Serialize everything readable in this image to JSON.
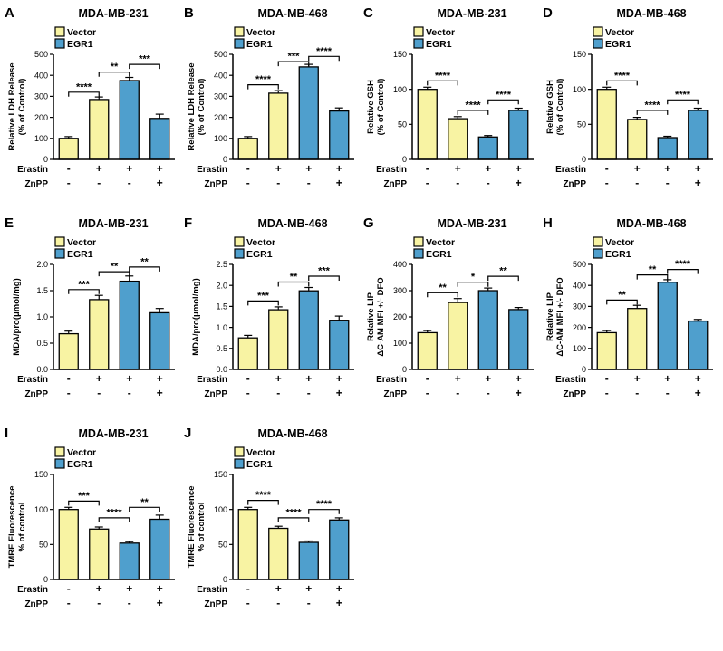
{
  "figure": {
    "legend": [
      {
        "label": "Vector",
        "color_key": "vector"
      },
      {
        "label": "EGR1",
        "color_key": "egr1"
      }
    ],
    "colors": {
      "vector": "#F8F3A3",
      "egr1": "#4F9FCD",
      "outline": "#000000"
    },
    "x_rows": [
      {
        "label": "Erastin",
        "signs": [
          "-",
          "+",
          "+",
          "+"
        ]
      },
      {
        "label": "ZnPP",
        "signs": [
          "-",
          "-",
          "-",
          "+"
        ]
      }
    ]
  },
  "chart_data": [
    {
      "type": "bar",
      "panel": "A",
      "title": "MDA-MB-231",
      "ylabel_lines": [
        "Relative LDH Release",
        "(% of Control)"
      ],
      "ylim": [
        0,
        500
      ],
      "yticks": [
        0,
        100,
        200,
        300,
        400,
        500
      ],
      "ytick_decimals": 0,
      "bar_colors": [
        "vector",
        "vector",
        "egr1",
        "egr1"
      ],
      "values": [
        100,
        285,
        375,
        195
      ],
      "errors": [
        8,
        12,
        15,
        20
      ],
      "significance": [
        {
          "from": 0,
          "to": 1,
          "label": "****",
          "y": 320
        },
        {
          "from": 1,
          "to": 2,
          "label": "**",
          "y": 415
        },
        {
          "from": 2,
          "to": 3,
          "label": "***",
          "y": 452
        }
      ]
    },
    {
      "type": "bar",
      "panel": "B",
      "title": "MDA-MB-468",
      "ylabel_lines": [
        "Relative LDH Release",
        "(% of Control)"
      ],
      "ylim": [
        0,
        500
      ],
      "yticks": [
        0,
        100,
        200,
        300,
        400,
        500
      ],
      "ytick_decimals": 0,
      "bar_colors": [
        "vector",
        "vector",
        "egr1",
        "egr1"
      ],
      "values": [
        100,
        315,
        440,
        230
      ],
      "errors": [
        8,
        12,
        12,
        15
      ],
      "significance": [
        {
          "from": 0,
          "to": 1,
          "label": "****",
          "y": 355
        },
        {
          "from": 1,
          "to": 2,
          "label": "***",
          "y": 465
        },
        {
          "from": 2,
          "to": 3,
          "label": "****",
          "y": 490
        }
      ]
    },
    {
      "type": "bar",
      "panel": "C",
      "title": "MDA-MB-231",
      "ylabel_lines": [
        "Relative GSH",
        "(% of Control)"
      ],
      "ylim": [
        0,
        150
      ],
      "yticks": [
        0,
        50,
        100,
        150
      ],
      "ytick_decimals": 0,
      "bar_colors": [
        "vector",
        "vector",
        "egr1",
        "egr1"
      ],
      "values": [
        100,
        58,
        32,
        70
      ],
      "errors": [
        3,
        3,
        2,
        3
      ],
      "significance": [
        {
          "from": 0,
          "to": 1,
          "label": "****",
          "y": 112
        },
        {
          "from": 1,
          "to": 2,
          "label": "****",
          "y": 70
        },
        {
          "from": 2,
          "to": 3,
          "label": "****",
          "y": 85
        }
      ]
    },
    {
      "type": "bar",
      "panel": "D",
      "title": "MDA-MB-468",
      "ylabel_lines": [
        "Relative GSH",
        "(% of Control)"
      ],
      "ylim": [
        0,
        150
      ],
      "yticks": [
        0,
        50,
        100,
        150
      ],
      "ytick_decimals": 0,
      "bar_colors": [
        "vector",
        "vector",
        "egr1",
        "egr1"
      ],
      "values": [
        100,
        57,
        31,
        70
      ],
      "errors": [
        3,
        3,
        2,
        3
      ],
      "significance": [
        {
          "from": 0,
          "to": 1,
          "label": "****",
          "y": 112
        },
        {
          "from": 1,
          "to": 2,
          "label": "****",
          "y": 70
        },
        {
          "from": 2,
          "to": 3,
          "label": "****",
          "y": 85
        }
      ]
    },
    {
      "type": "bar",
      "panel": "E",
      "title": "MDA-MB-231",
      "ylabel_lines": [
        "MDA/pro(μmol/mg)"
      ],
      "ylim": [
        0,
        2.0
      ],
      "yticks": [
        0,
        0.5,
        1.0,
        1.5,
        2.0
      ],
      "ytick_decimals": 1,
      "bar_colors": [
        "vector",
        "vector",
        "egr1",
        "egr1"
      ],
      "values": [
        0.68,
        1.33,
        1.68,
        1.08
      ],
      "errors": [
        0.05,
        0.08,
        0.1,
        0.08
      ],
      "significance": [
        {
          "from": 0,
          "to": 1,
          "label": "***",
          "y": 1.52
        },
        {
          "from": 1,
          "to": 2,
          "label": "**",
          "y": 1.86
        },
        {
          "from": 2,
          "to": 3,
          "label": "**",
          "y": 1.95
        }
      ]
    },
    {
      "type": "bar",
      "panel": "F",
      "title": "MDA-MB-468",
      "ylabel_lines": [
        "MDA/pro(μmol/mg)"
      ],
      "ylim": [
        0,
        2.5
      ],
      "yticks": [
        0,
        0.5,
        1.0,
        1.5,
        2.0,
        2.5
      ],
      "ytick_decimals": 1,
      "bar_colors": [
        "vector",
        "vector",
        "egr1",
        "egr1"
      ],
      "values": [
        0.75,
        1.42,
        1.87,
        1.17
      ],
      "errors": [
        0.06,
        0.07,
        0.08,
        0.1
      ],
      "significance": [
        {
          "from": 0,
          "to": 1,
          "label": "***",
          "y": 1.63
        },
        {
          "from": 1,
          "to": 2,
          "label": "**",
          "y": 2.08
        },
        {
          "from": 2,
          "to": 3,
          "label": "***",
          "y": 2.22
        }
      ]
    },
    {
      "type": "bar",
      "panel": "G",
      "title": "MDA-MB-231",
      "ylabel_lines": [
        "Relative LIP",
        "ΔC-AM MFI +/- DFO"
      ],
      "ylim": [
        0,
        400
      ],
      "yticks": [
        0,
        100,
        200,
        300,
        400
      ],
      "ytick_decimals": 0,
      "bar_colors": [
        "vector",
        "vector",
        "egr1",
        "egr1"
      ],
      "values": [
        140,
        255,
        300,
        228
      ],
      "errors": [
        8,
        15,
        10,
        8
      ],
      "significance": [
        {
          "from": 0,
          "to": 1,
          "label": "**",
          "y": 292
        },
        {
          "from": 1,
          "to": 2,
          "label": "*",
          "y": 332
        },
        {
          "from": 2,
          "to": 3,
          "label": "**",
          "y": 355
        }
      ]
    },
    {
      "type": "bar",
      "panel": "H",
      "title": "MDA-MB-468",
      "ylabel_lines": [
        "Relative LIP",
        "ΔC-AM MFI +/- DFO"
      ],
      "ylim": [
        0,
        500
      ],
      "yticks": [
        0,
        100,
        200,
        300,
        400,
        500
      ],
      "ytick_decimals": 0,
      "bar_colors": [
        "vector",
        "vector",
        "egr1",
        "egr1"
      ],
      "values": [
        175,
        290,
        415,
        230
      ],
      "errors": [
        10,
        15,
        12,
        8
      ],
      "significance": [
        {
          "from": 0,
          "to": 1,
          "label": "**",
          "y": 330
        },
        {
          "from": 1,
          "to": 2,
          "label": "**",
          "y": 450
        },
        {
          "from": 2,
          "to": 3,
          "label": "****",
          "y": 476
        }
      ]
    },
    {
      "type": "bar",
      "panel": "I",
      "title": "MDA-MB-231",
      "ylabel_lines": [
        "TMRE Fluorescence",
        "% of control"
      ],
      "ylim": [
        0,
        150
      ],
      "yticks": [
        0,
        50,
        100,
        150
      ],
      "ytick_decimals": 0,
      "bar_colors": [
        "vector",
        "vector",
        "egr1",
        "egr1"
      ],
      "values": [
        100,
        72,
        52,
        86
      ],
      "errors": [
        3,
        3,
        2,
        6
      ],
      "significance": [
        {
          "from": 0,
          "to": 1,
          "label": "***",
          "y": 112
        },
        {
          "from": 1,
          "to": 2,
          "label": "****",
          "y": 88
        },
        {
          "from": 2,
          "to": 3,
          "label": "**",
          "y": 103
        }
      ]
    },
    {
      "type": "bar",
      "panel": "J",
      "title": "MDA-MB-468",
      "ylabel_lines": [
        "TMRE Fluorescence",
        "% of control"
      ],
      "ylim": [
        0,
        150
      ],
      "yticks": [
        0,
        50,
        100,
        150
      ],
      "ytick_decimals": 0,
      "bar_colors": [
        "vector",
        "vector",
        "egr1",
        "egr1"
      ],
      "values": [
        100,
        73,
        53,
        85
      ],
      "errors": [
        3,
        3,
        2,
        3
      ],
      "significance": [
        {
          "from": 0,
          "to": 1,
          "label": "****",
          "y": 113
        },
        {
          "from": 1,
          "to": 2,
          "label": "****",
          "y": 88
        },
        {
          "from": 2,
          "to": 3,
          "label": "****",
          "y": 100
        }
      ]
    }
  ]
}
